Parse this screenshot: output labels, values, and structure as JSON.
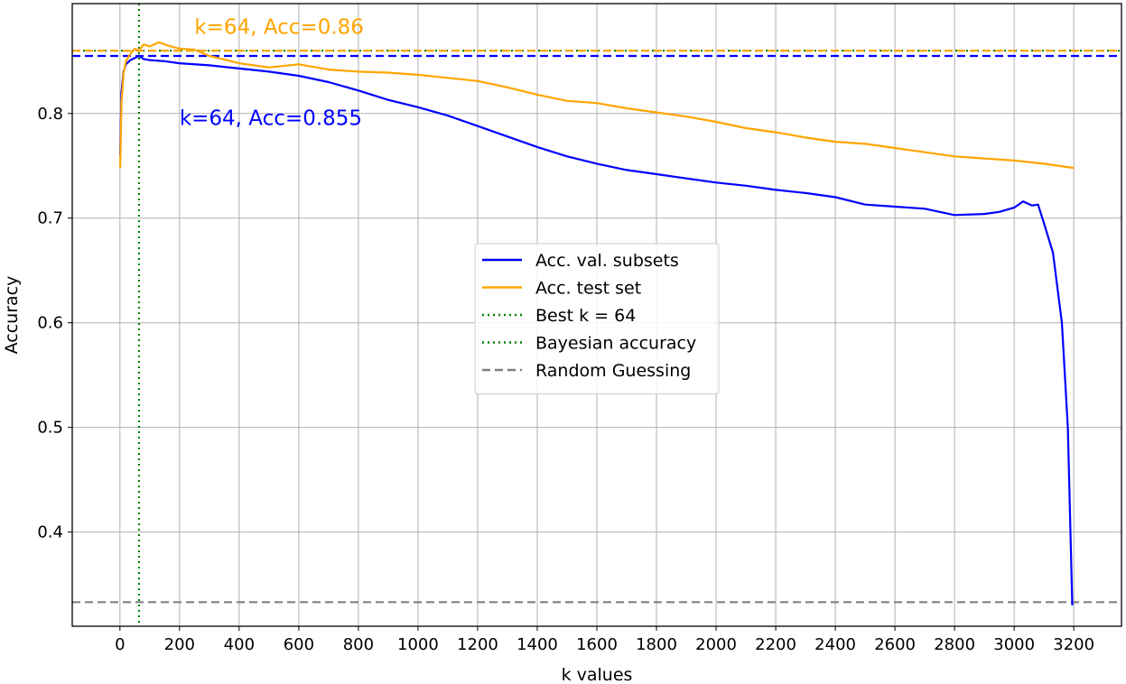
{
  "chart_data": {
    "type": "line",
    "xlabel": "k values",
    "ylabel": "Accuracy",
    "xlim": [
      -160,
      3360
    ],
    "ylim": [
      0.31,
      0.905
    ],
    "xticks": [
      0,
      200,
      400,
      600,
      800,
      1000,
      1200,
      1400,
      1600,
      1800,
      2000,
      2200,
      2400,
      2600,
      2800,
      3000,
      3200
    ],
    "xtick_labels": [
      "0",
      "200",
      "400",
      "600",
      "800",
      "1000",
      "1200",
      "1400",
      "1600",
      "1800",
      "2000",
      "2200",
      "2400",
      "2600",
      "2800",
      "3000",
      "3200"
    ],
    "yticks": [
      0.4,
      0.5,
      0.6,
      0.7,
      0.8
    ],
    "ytick_labels": [
      "0.4",
      "0.5",
      "0.6",
      "0.7",
      "0.8"
    ],
    "grid": true,
    "legend_position": "center-right",
    "series": [
      {
        "name": "Acc. val. subsets",
        "color": "#0000ff",
        "style": "solid",
        "x": [
          1,
          5,
          12,
          20,
          35,
          50,
          64,
          80,
          100,
          150,
          200,
          300,
          400,
          500,
          600,
          700,
          800,
          900,
          1000,
          1100,
          1200,
          1300,
          1400,
          1500,
          1600,
          1700,
          1800,
          1900,
          2000,
          2100,
          2200,
          2300,
          2400,
          2500,
          2600,
          2700,
          2800,
          2900,
          2950,
          3000,
          3030,
          3060,
          3080,
          3100,
          3130,
          3160,
          3180,
          3195
        ],
        "y": [
          0.76,
          0.82,
          0.84,
          0.847,
          0.851,
          0.853,
          0.855,
          0.852,
          0.851,
          0.85,
          0.848,
          0.846,
          0.843,
          0.84,
          0.836,
          0.83,
          0.822,
          0.813,
          0.806,
          0.798,
          0.788,
          0.778,
          0.768,
          0.759,
          0.752,
          0.746,
          0.742,
          0.738,
          0.734,
          0.731,
          0.727,
          0.724,
          0.72,
          0.713,
          0.711,
          0.709,
          0.703,
          0.704,
          0.706,
          0.71,
          0.716,
          0.712,
          0.713,
          0.695,
          0.667,
          0.6,
          0.5,
          0.33
        ]
      },
      {
        "name": "Acc. test set",
        "color": "#ffa500",
        "style": "solid",
        "x": [
          1,
          5,
          12,
          20,
          35,
          50,
          64,
          80,
          100,
          130,
          160,
          200,
          250,
          300,
          400,
          500,
          600,
          700,
          800,
          900,
          1000,
          1100,
          1200,
          1300,
          1400,
          1500,
          1600,
          1700,
          1800,
          1900,
          2000,
          2100,
          2200,
          2300,
          2400,
          2500,
          2600,
          2700,
          2800,
          2900,
          3000,
          3100,
          3200
        ],
        "y": [
          0.748,
          0.81,
          0.838,
          0.85,
          0.857,
          0.862,
          0.86,
          0.866,
          0.864,
          0.868,
          0.865,
          0.862,
          0.861,
          0.855,
          0.848,
          0.844,
          0.847,
          0.842,
          0.84,
          0.839,
          0.837,
          0.834,
          0.831,
          0.825,
          0.818,
          0.812,
          0.81,
          0.805,
          0.801,
          0.797,
          0.792,
          0.786,
          0.782,
          0.777,
          0.773,
          0.771,
          0.767,
          0.763,
          0.759,
          0.757,
          0.755,
          0.752,
          0.748
        ]
      }
    ],
    "reference_lines": [
      {
        "name": "Best k = 64",
        "orientation": "vertical",
        "value": 64,
        "color": "#008000",
        "style": "dotted",
        "in_legend": true
      },
      {
        "name": "Bayesian accuracy",
        "orientation": "horizontal",
        "value": 0.86,
        "color": "#008000",
        "style": "dotted",
        "in_legend": true
      },
      {
        "name": "Random Guessing",
        "orientation": "horizontal",
        "value": 0.333,
        "color": "#808080",
        "style": "dashed",
        "in_legend": true
      },
      {
        "name": "",
        "orientation": "horizontal",
        "value": 0.86,
        "color": "#ffa500",
        "style": "dashed",
        "in_legend": false
      },
      {
        "name": "",
        "orientation": "horizontal",
        "value": 0.855,
        "color": "#0000ff",
        "style": "dashed",
        "in_legend": false
      }
    ],
    "annotations": [
      {
        "text": "k=64, Acc=0.86",
        "color": "#ffa500",
        "x": 250,
        "y": 0.876
      },
      {
        "text": "k=64, Acc=0.855",
        "color": "#0000ff",
        "x": 200,
        "y": 0.789
      }
    ]
  }
}
